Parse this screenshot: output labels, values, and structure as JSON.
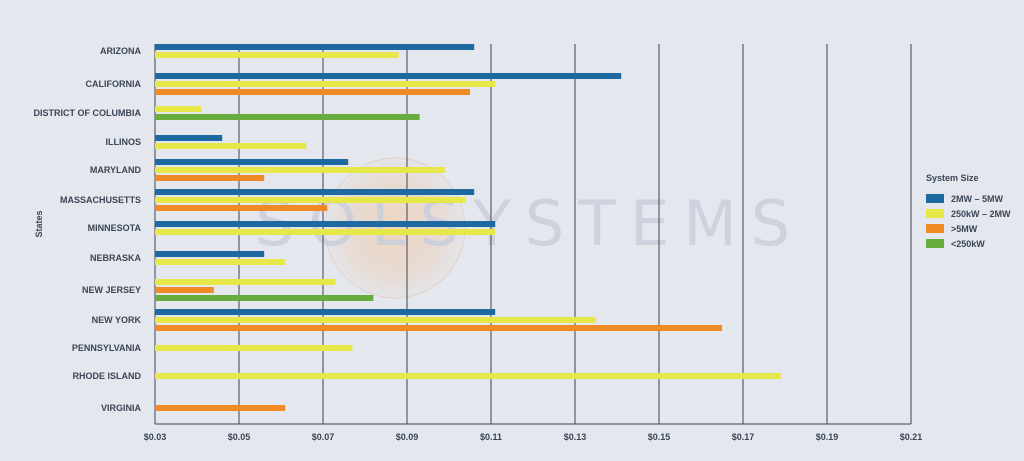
{
  "chart_data": {
    "type": "bar",
    "orientation": "horizontal",
    "title": "",
    "xlabel": "",
    "ylabel": "States",
    "xlim": [
      0.03,
      0.21
    ],
    "x_ticks": [
      "$0.03",
      "$0.05",
      "$0.07",
      "$0.09",
      "$0.11",
      "$0.13",
      "$0.15",
      "$0.17",
      "$0.19",
      "$0.21"
    ],
    "x_tick_values": [
      0.03,
      0.05,
      0.07,
      0.09,
      0.11,
      0.13,
      0.15,
      0.17,
      0.19,
      0.21
    ],
    "grid": "vertical",
    "legend_position": "right",
    "legend_title": "System Size",
    "categories": [
      "ARIZONA",
      "CALIFORNIA",
      "DISTRICT OF COLUMBIA",
      "ILLINOS",
      "MARYLAND",
      "MASSACHUSETTS",
      "MINNESOTA",
      "NEBRASKA",
      "NEW JERSEY",
      "NEW YORK",
      "PENNSYLVANIA",
      "RHODE ISLAND",
      "VIRGINIA"
    ],
    "series": [
      {
        "name": "2MW – 5MW",
        "color": "#1e6aa0",
        "values": [
          0.106,
          0.141,
          null,
          0.046,
          0.076,
          0.106,
          0.111,
          0.056,
          null,
          0.111,
          null,
          null,
          null
        ]
      },
      {
        "name": "250kW – 2MW",
        "color": "#e6e84a",
        "values": [
          0.088,
          0.111,
          0.041,
          0.066,
          0.099,
          0.104,
          0.111,
          0.061,
          0.073,
          0.135,
          0.077,
          0.179,
          null
        ]
      },
      {
        "name": ">5MW",
        "color": "#f08a24",
        "values": [
          null,
          0.105,
          null,
          null,
          0.056,
          0.071,
          null,
          null,
          0.044,
          0.165,
          null,
          null,
          0.061
        ]
      },
      {
        "name": "<250kW",
        "color": "#68ac3e",
        "values": [
          null,
          null,
          0.093,
          null,
          null,
          null,
          null,
          null,
          0.082,
          null,
          null,
          null,
          null
        ]
      }
    ]
  },
  "watermark": {
    "text": "SOLSYSTEMS"
  },
  "colors": {
    "background": "#e4e7ee",
    "grid": "#3d4654",
    "label": "#3a4556"
  }
}
